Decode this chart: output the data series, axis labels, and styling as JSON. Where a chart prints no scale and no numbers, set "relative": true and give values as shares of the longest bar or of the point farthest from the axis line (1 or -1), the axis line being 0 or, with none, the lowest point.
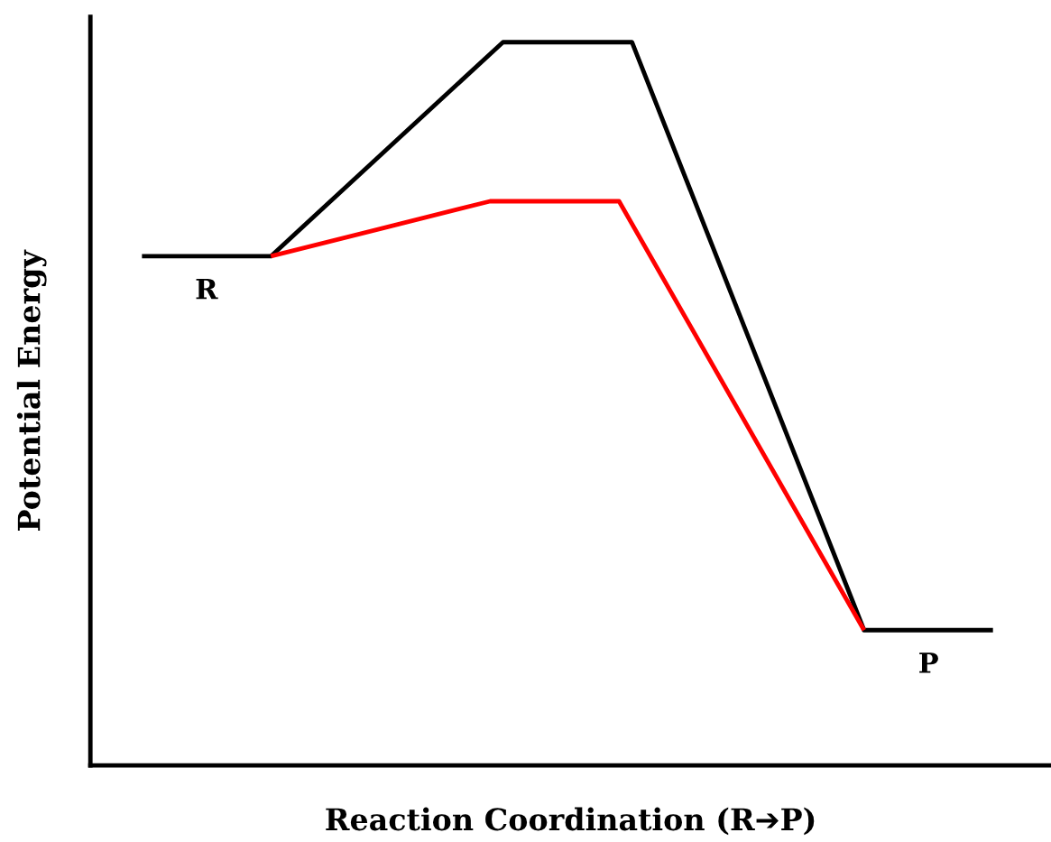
{
  "chart_data": {
    "type": "line",
    "relative": true,
    "xlabel": "Reaction Coordination (R➔P)",
    "ylabel": "Potential Energy",
    "marker": "none",
    "line_style": "solid",
    "legend": false,
    "categories": [
      null,
      null,
      null,
      null,
      null,
      null,
      null,
      null,
      null,
      null,
      null,
      null,
      null,
      null,
      null,
      null,
      null,
      null,
      null,
      null,
      null,
      null,
      null,
      null,
      null,
      null,
      null,
      null,
      null,
      null,
      null,
      null,
      null,
      null,
      null,
      null,
      null,
      null,
      null,
      null,
      null,
      null,
      null,
      null,
      null,
      null,
      null,
      null,
      null,
      null,
      null,
      null,
      null,
      null,
      null,
      null,
      null,
      null,
      null,
      null,
      null,
      null,
      null,
      null,
      null,
      null,
      null
    ],
    "series": [
      {
        "color": "#000000",
        "values": [
          0.704,
          null,
          null,
          null,
          null,
          null,
          null,
          null,
          null,
          null,
          0.704,
          null,
          null,
          null,
          null,
          null,
          null,
          null,
          null,
          null,
          null,
          null,
          null,
          null,
          null,
          null,
          null,
          null,
          1,
          null,
          null,
          null,
          null,
          null,
          null,
          null,
          null,
          null,
          1,
          null,
          null,
          null,
          null,
          null,
          null,
          null,
          null,
          null,
          null,
          null,
          null,
          null,
          null,
          null,
          null,
          null,
          0.187,
          null,
          null,
          null,
          null,
          null,
          null,
          null,
          null,
          null,
          0.187
        ]
      },
      {
        "color": "#ff0000",
        "values": [
          null,
          null,
          null,
          null,
          null,
          null,
          null,
          null,
          null,
          null,
          0.704,
          null,
          null,
          null,
          null,
          null,
          null,
          null,
          null,
          null,
          null,
          null,
          null,
          null,
          null,
          null,
          null,
          0.78,
          null,
          null,
          null,
          null,
          null,
          null,
          null,
          null,
          null,
          0.78,
          null,
          null,
          null,
          null,
          null,
          null,
          null,
          null,
          null,
          null,
          null,
          null,
          null,
          null,
          null,
          null,
          null,
          null,
          0.187,
          null,
          null,
          null,
          null,
          null,
          null,
          null,
          null,
          null,
          null
        ]
      }
    ],
    "annotations": [
      "R",
      "P"
    ]
  }
}
